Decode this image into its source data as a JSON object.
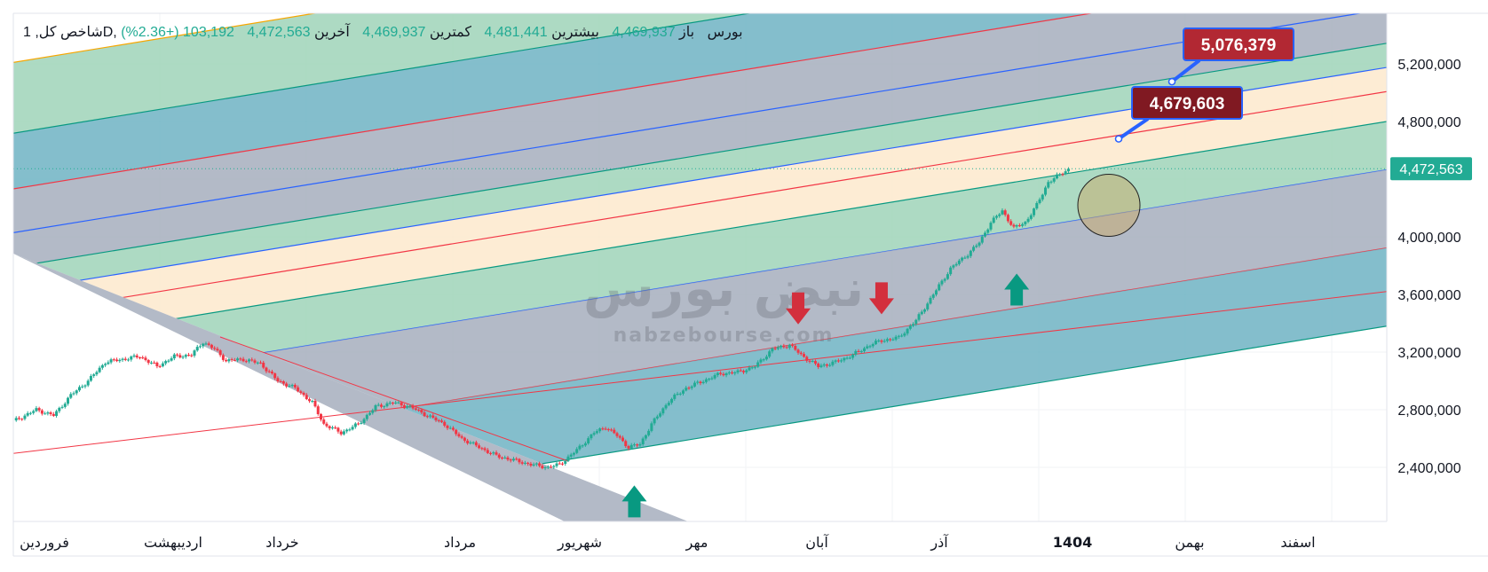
{
  "header": {
    "symbol_text": "شاخص کل, 1D, بورس",
    "open_label": "باز",
    "open_value": "4,469,937",
    "high_label": "بیشترین",
    "high_value": "4,481,441",
    "low_label": "کمترین",
    "low_value": "4,469,937",
    "close_label": "آخرین",
    "close_value": "4,472,563",
    "change_text": "103,192 (+2.36%)"
  },
  "watermark": {
    "brand": "نبض بورس",
    "url": "nabzebourse.com"
  },
  "price_tag": "4,472,563",
  "callouts": [
    {
      "label": "5,076,379",
      "value": 5076379,
      "color": "#b22833"
    },
    {
      "label": "4,679,603",
      "value": 4679603,
      "color": "#801922"
    }
  ],
  "colors": {
    "up": "#22ab94",
    "down": "#f23645",
    "band_green": "#9fd3b9",
    "band_teal": "#6fb3c3",
    "band_gray": "#a6aebd",
    "band_cream": "#fde9cd",
    "arrow_up": "#089981",
    "arrow_down": "#d32f3d"
  },
  "chart_data": {
    "type": "candlestick",
    "y_tick_labels": [
      "2,400,000",
      "2,800,000",
      "3,200,000",
      "3,600,000",
      "4,000,000",
      "4,800,000",
      "5,200,000"
    ],
    "y_ticks": [
      2400000,
      2800000,
      3200000,
      3600000,
      4000000,
      4800000,
      5200000
    ],
    "ylim": [
      2000000,
      5480000
    ],
    "x_month_labels": [
      "فروردین",
      "اردیبهشت",
      "خرداد",
      "مرداد",
      "شهریور",
      "مهر",
      "آبان",
      "آذر",
      "1404",
      "بهمن",
      "اسفند"
    ],
    "x_label_bold": "1404",
    "close_path": [
      [
        0,
        2720000
      ],
      [
        8,
        2800000
      ],
      [
        14,
        2760000
      ],
      [
        20,
        2900000
      ],
      [
        26,
        3000000
      ],
      [
        32,
        3130000
      ],
      [
        38,
        3150000
      ],
      [
        44,
        3170000
      ],
      [
        50,
        3100000
      ],
      [
        56,
        3170000
      ],
      [
        62,
        3180000
      ],
      [
        66,
        3270000
      ],
      [
        70,
        3220000
      ],
      [
        74,
        3140000
      ],
      [
        80,
        3150000
      ],
      [
        86,
        3120000
      ],
      [
        92,
        3000000
      ],
      [
        98,
        2950000
      ],
      [
        104,
        2850000
      ],
      [
        108,
        2700000
      ],
      [
        114,
        2640000
      ],
      [
        120,
        2700000
      ],
      [
        126,
        2820000
      ],
      [
        132,
        2850000
      ],
      [
        138,
        2820000
      ],
      [
        144,
        2760000
      ],
      [
        150,
        2700000
      ],
      [
        156,
        2600000
      ],
      [
        162,
        2540000
      ],
      [
        168,
        2480000
      ],
      [
        174,
        2450000
      ],
      [
        180,
        2420000
      ],
      [
        186,
        2400000
      ],
      [
        190,
        2420000
      ],
      [
        196,
        2520000
      ],
      [
        202,
        2640000
      ],
      [
        206,
        2680000
      ],
      [
        210,
        2620000
      ],
      [
        214,
        2540000
      ],
      [
        218,
        2560000
      ],
      [
        222,
        2700000
      ],
      [
        228,
        2860000
      ],
      [
        234,
        2950000
      ],
      [
        240,
        3000000
      ],
      [
        246,
        3050000
      ],
      [
        252,
        3060000
      ],
      [
        258,
        3100000
      ],
      [
        264,
        3220000
      ],
      [
        270,
        3250000
      ],
      [
        274,
        3180000
      ],
      [
        280,
        3100000
      ],
      [
        286,
        3130000
      ],
      [
        292,
        3180000
      ],
      [
        298,
        3250000
      ],
      [
        302,
        3280000
      ],
      [
        308,
        3300000
      ],
      [
        314,
        3420000
      ],
      [
        320,
        3600000
      ],
      [
        326,
        3780000
      ],
      [
        332,
        3880000
      ],
      [
        336,
        3960000
      ],
      [
        340,
        4100000
      ],
      [
        344,
        4180000
      ],
      [
        348,
        4060000
      ],
      [
        352,
        4100000
      ],
      [
        356,
        4220000
      ],
      [
        360,
        4380000
      ],
      [
        364,
        4430000
      ],
      [
        367,
        4472563
      ]
    ],
    "fib_levels": [
      0,
      0.236,
      0.382,
      0.5,
      0.618,
      0.786,
      1,
      1.272,
      1.618
    ],
    "annotations": {
      "arrows_up": [
        [
          216,
          2410000
        ],
        [
          349,
          3880000
        ]
      ],
      "arrows_down": [
        [
          273,
          3380000
        ],
        [
          302,
          3450000
        ]
      ],
      "circle": [
        382,
        4120000
      ]
    }
  }
}
